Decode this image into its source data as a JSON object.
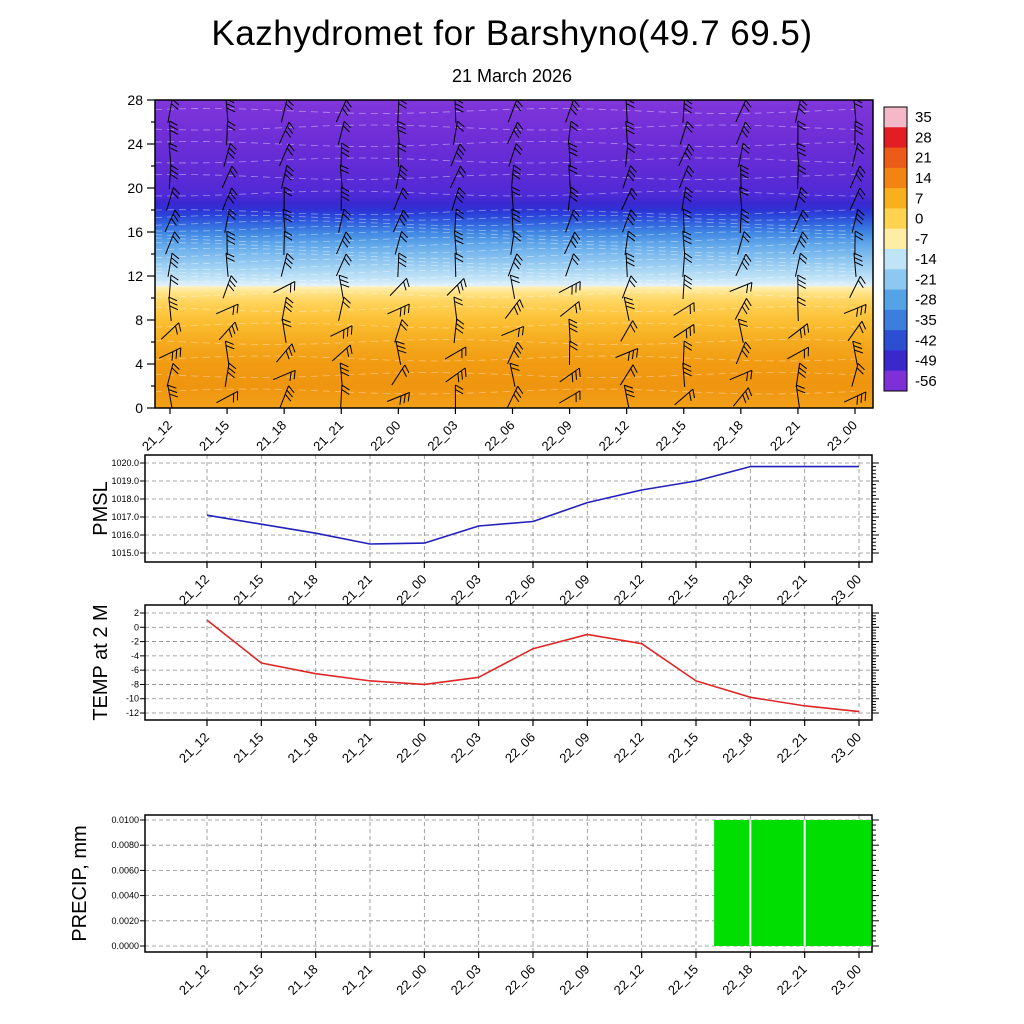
{
  "title": "Kazhydromet for Barshyno(49.7 69.5)",
  "subtitle": "21 March 2026",
  "time_labels": [
    "21_12",
    "21_15",
    "21_18",
    "21_21",
    "22_00",
    "22_03",
    "22_06",
    "22_09",
    "22_12",
    "22_15",
    "22_18",
    "22_21",
    "23_00"
  ],
  "panels": {
    "upper": {
      "y_ticks": [
        0,
        4,
        8,
        12,
        16,
        20,
        24,
        28
      ]
    },
    "pmsl": {
      "ylabel": "PMSL",
      "y_ticks": [
        "1015.0",
        "1016.0",
        "1017.0",
        "1018.0",
        "1019.0",
        "1020.0"
      ]
    },
    "temp": {
      "ylabel": "TEMP at 2 M",
      "y_ticks": [
        "-12",
        "-10",
        "-8",
        "-6",
        "-4",
        "-2",
        "0",
        "2"
      ]
    },
    "precip": {
      "ylabel": "PRECIP, mm",
      "y_ticks": [
        "0.0000",
        "0.0020",
        "0.0040",
        "0.0060",
        "0.0080",
        "0.0100"
      ]
    }
  },
  "chart_data": [
    {
      "type": "heatmap",
      "name": "upper-air temperature/wind time-height section",
      "x_categories": [
        "21_12",
        "21_15",
        "21_18",
        "21_21",
        "22_00",
        "22_03",
        "22_06",
        "22_09",
        "22_12",
        "22_15",
        "22_18",
        "22_21",
        "23_00"
      ],
      "y_axis": {
        "range": [
          0,
          28
        ],
        "ticks": [
          0,
          4,
          8,
          12,
          16,
          20,
          24,
          28
        ]
      },
      "colorbar_ticks": [
        35,
        28,
        21,
        14,
        7,
        0,
        -7,
        -14,
        -21,
        -28,
        -35,
        -42,
        -49,
        -56
      ],
      "colorbar_colors": [
        "#f3b9c9",
        "#e21d24",
        "#ec5b17",
        "#f28414",
        "#f9b01e",
        "#ffd24f",
        "#ffeda6",
        "#bfe3f7",
        "#8cc8f0",
        "#55a3e6",
        "#3d7ddd",
        "#2b4ed3",
        "#3b28cd",
        "#7e2fd8"
      ],
      "temperature_profile_bands": [
        {
          "height_range": [
            0,
            11
          ],
          "approx_temp": "0 to +10",
          "appearance": "orange-yellow"
        },
        {
          "height_range": [
            11,
            12
          ],
          "approx_temp": "-7 to 0",
          "appearance": "pale yellow"
        },
        {
          "height_range": [
            12,
            16
          ],
          "approx_temp": "-14 to -28",
          "appearance": "light blue"
        },
        {
          "height_range": [
            16,
            18
          ],
          "approx_temp": "-35 to -49",
          "appearance": "blue"
        },
        {
          "height_range": [
            18,
            28
          ],
          "approx_temp": "-49 to -60",
          "appearance": "purple"
        }
      ],
      "wind_barbs": {
        "columns": "one per time step",
        "rows": "every 2 height units",
        "style": "black staffs with 2-3 flags"
      },
      "gradient_stops": [
        [
          0.0,
          "#8036da"
        ],
        [
          0.12,
          "#6f2ed7"
        ],
        [
          0.24,
          "#5e2bd5"
        ],
        [
          0.31,
          "#4e2ad6"
        ],
        [
          0.335,
          "#3a28d0"
        ],
        [
          0.355,
          "#2f31d4"
        ],
        [
          0.375,
          "#2c45da"
        ],
        [
          0.4,
          "#3163de"
        ],
        [
          0.43,
          "#3f86e2"
        ],
        [
          0.47,
          "#62a8ea"
        ],
        [
          0.5,
          "#7cbaee"
        ],
        [
          0.545,
          "#a2d2f3"
        ],
        [
          0.585,
          "#c8e6f8"
        ],
        [
          0.603,
          "#e2f1fb"
        ],
        [
          0.607,
          "#fff0b8"
        ],
        [
          0.625,
          "#ffe388"
        ],
        [
          0.66,
          "#ffd258"
        ],
        [
          0.715,
          "#fcc034"
        ],
        [
          0.78,
          "#f6ac20"
        ],
        [
          0.857,
          "#f19b12"
        ],
        [
          0.93,
          "#ef9510"
        ],
        [
          1.0,
          "#f2a118"
        ]
      ]
    },
    {
      "type": "line",
      "name": "PMSL",
      "color": "#2121bc",
      "x": [
        "21_12",
        "21_15",
        "21_18",
        "21_21",
        "22_00",
        "22_03",
        "22_06",
        "22_09",
        "22_12",
        "22_15",
        "22_18",
        "22_21",
        "23_00"
      ],
      "values": [
        1017.1,
        1016.6,
        1016.1,
        1015.5,
        1015.55,
        1016.5,
        1016.75,
        1017.8,
        1018.5,
        1019.0,
        1019.8,
        1019.8,
        1019.8
      ],
      "ylim": [
        1015,
        1020
      ],
      "ytick_step": 1
    },
    {
      "type": "line",
      "name": "TEMP at 2 M",
      "color": "#de2626",
      "x": [
        "21_12",
        "21_15",
        "21_18",
        "21_21",
        "22_00",
        "22_03",
        "22_06",
        "22_09",
        "22_12",
        "22_15",
        "22_18",
        "22_21",
        "23_00"
      ],
      "values": [
        1,
        -5,
        -6.5,
        -7.5,
        -8,
        -7,
        -3,
        -1,
        -2.3,
        -7.5,
        -9.8,
        -11,
        -11.8
      ],
      "ylim": [
        -12,
        2
      ],
      "ytick_step": 2
    },
    {
      "type": "bar",
      "name": "PRECIP, mm",
      "color": "#00dd00",
      "x": [
        "21_12",
        "21_15",
        "21_18",
        "21_21",
        "22_00",
        "22_03",
        "22_06",
        "22_09",
        "22_12",
        "22_15",
        "22_18",
        "22_21",
        "23_00"
      ],
      "values": [
        0,
        0,
        0,
        0,
        0,
        0,
        0,
        0,
        0,
        0,
        0.01,
        0.01,
        0.01
      ],
      "fill_region": {
        "start": "22_16",
        "end": "23_00",
        "value": 0.01
      },
      "ylim": [
        0,
        0.01
      ],
      "ytick_step": 0.002
    }
  ]
}
